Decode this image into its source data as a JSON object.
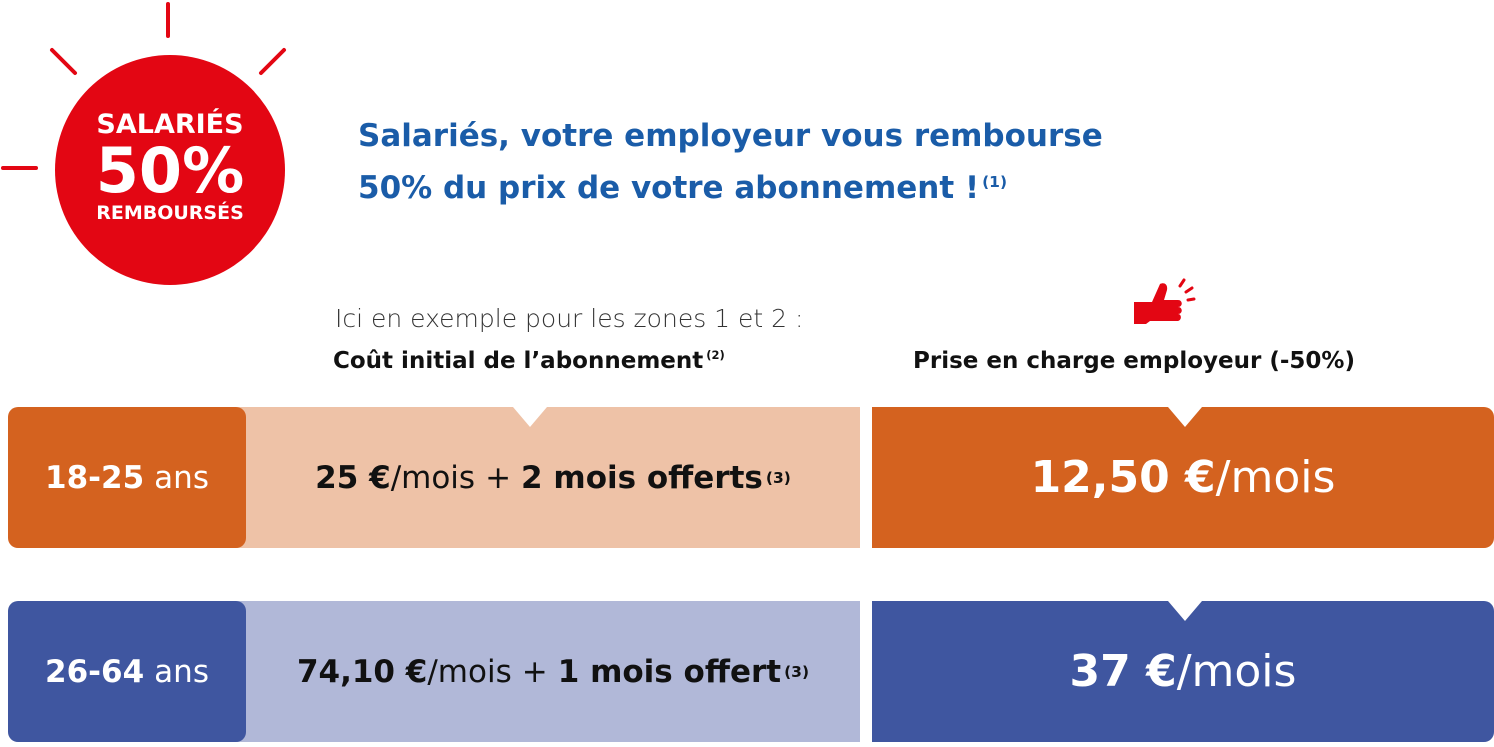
{
  "badge": {
    "line1": "SALARIÉS",
    "line2": "50%",
    "line3": "REMBOURSÉS"
  },
  "headline": {
    "line1": "Salariés, votre employeur vous rembourse",
    "line2": "50% du prix de votre abonnement !",
    "note": "(1)"
  },
  "intro": "Ici en exemple pour les zones 1 et 2 :",
  "columns": {
    "initial": {
      "label": "Coût initial de l’abonnement",
      "note": "(2)"
    },
    "employer": "Prise en charge employeur (-50%)"
  },
  "rows": [
    {
      "age": "18-25",
      "age_unit": "ans",
      "price": "25 €",
      "price_unit": "/mois",
      "plus": "+",
      "offer": "2 mois offerts",
      "offer_note": "(3)",
      "employer_price": "12,50 €",
      "employer_unit": "/mois"
    },
    {
      "age": "26-64",
      "age_unit": "ans",
      "price": "74,10 €",
      "price_unit": "/mois",
      "plus": "+",
      "offer": "1 mois offert",
      "offer_note": "(3)",
      "employer_price": "37 €",
      "employer_unit": "/mois"
    }
  ]
}
